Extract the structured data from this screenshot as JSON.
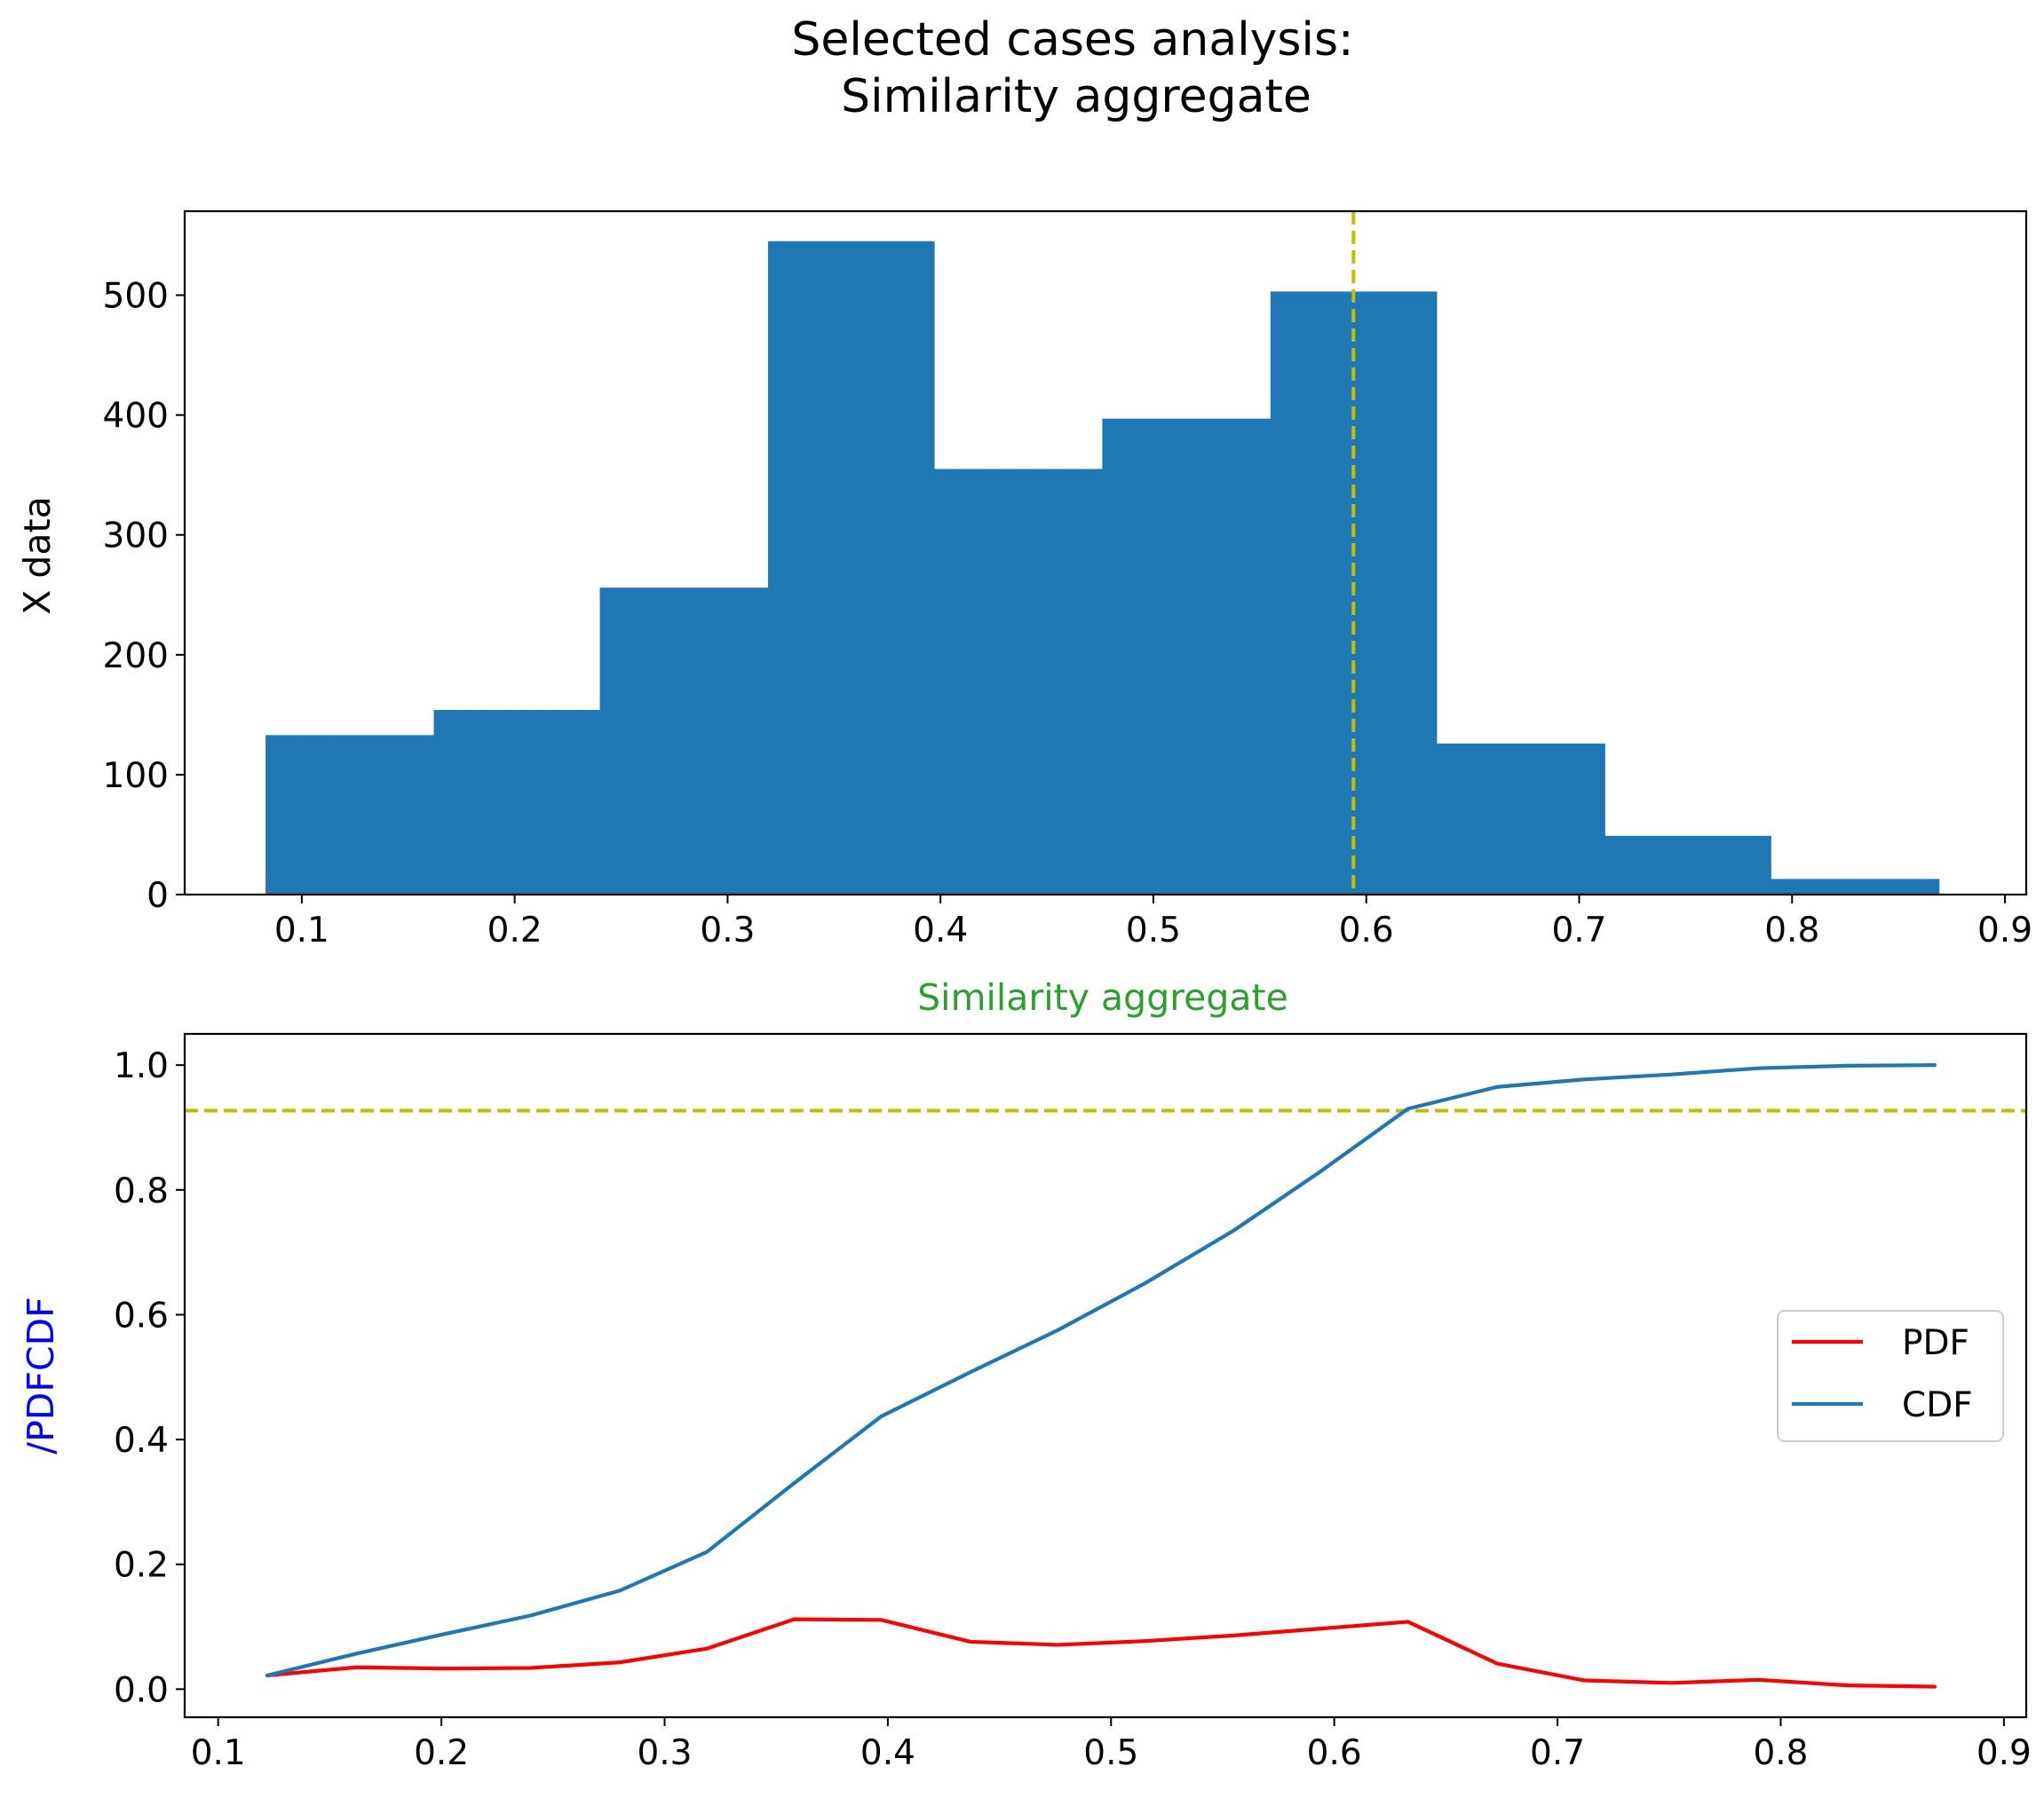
{
  "figure": {
    "suptitle_line1": "Selected cases analysis:",
    "suptitle_line2": "Similarity aggregate"
  },
  "chart_data": [
    {
      "type": "bar",
      "subtype": "histogram",
      "title": "",
      "xlabel": "Similarity aggregate",
      "xlabel_color": "#2ca02c",
      "ylabel": "X data",
      "xlim": [
        0.045,
        0.91
      ],
      "ylim": [
        0,
        570
      ],
      "xticks": [
        0.1,
        0.2,
        0.3,
        0.4,
        0.5,
        0.6,
        0.7,
        0.8,
        0.9
      ],
      "xtick_labels": [
        "0.1",
        "0.2",
        "0.3",
        "0.4",
        "0.5",
        "0.6",
        "0.7",
        "0.8",
        "0.9"
      ],
      "yticks": [
        0,
        100,
        200,
        300,
        400,
        500
      ],
      "ytick_labels": [
        "0",
        "100",
        "200",
        "300",
        "400",
        "500"
      ],
      "bin_edges": [
        0.083,
        0.162,
        0.24,
        0.319,
        0.397,
        0.476,
        0.555,
        0.633,
        0.712,
        0.79,
        0.869
      ],
      "values": [
        133,
        154,
        256,
        545,
        355,
        397,
        503,
        126,
        49,
        13
      ],
      "bar_color": "#1f77b4",
      "vline": {
        "x": 0.594,
        "color": "#bfbf00",
        "style": "dashed"
      },
      "grid": false
    },
    {
      "type": "line",
      "title": "",
      "xlabel": "",
      "ylabel": "/PDFCDF",
      "ylabel_color": "#0000ff",
      "xlim": [
        0.085,
        0.91
      ],
      "ylim": [
        -0.045,
        1.05
      ],
      "xticks": [
        0.1,
        0.2,
        0.3,
        0.4,
        0.5,
        0.6,
        0.7,
        0.8,
        0.9
      ],
      "xtick_labels": [
        "0.1",
        "0.2",
        "0.3",
        "0.4",
        "0.5",
        "0.6",
        "0.7",
        "0.8",
        "0.9"
      ],
      "yticks": [
        0.0,
        0.2,
        0.4,
        0.6,
        0.8,
        1.0
      ],
      "ytick_labels": [
        "0.0",
        "0.2",
        "0.4",
        "0.6",
        "0.8",
        "1.0"
      ],
      "x": [
        0.122,
        0.162,
        0.201,
        0.24,
        0.28,
        0.319,
        0.358,
        0.397,
        0.437,
        0.476,
        0.515,
        0.555,
        0.594,
        0.633,
        0.673,
        0.712,
        0.751,
        0.79,
        0.83,
        0.869
      ],
      "series": [
        {
          "name": "PDF",
          "color": "#ff0000",
          "values": [
            0.022,
            0.035,
            0.033,
            0.034,
            0.043,
            0.065,
            0.112,
            0.111,
            0.076,
            0.071,
            0.077,
            0.086,
            0.097,
            0.108,
            0.041,
            0.014,
            0.01,
            0.015,
            0.006,
            0.004
          ]
        },
        {
          "name": "CDF",
          "color": "#1f77b4",
          "values": [
            0.022,
            0.057,
            0.088,
            0.118,
            0.158,
            0.22,
            0.33,
            0.437,
            0.508,
            0.575,
            0.65,
            0.735,
            0.83,
            0.93,
            0.965,
            0.977,
            0.985,
            0.995,
            0.999,
            1.0
          ]
        }
      ],
      "hline": {
        "y": 0.927,
        "color": "#bfbf00",
        "style": "dashed"
      },
      "legend": {
        "placement": "center-right",
        "entries": [
          "PDF",
          "CDF"
        ]
      },
      "grid": false
    }
  ]
}
